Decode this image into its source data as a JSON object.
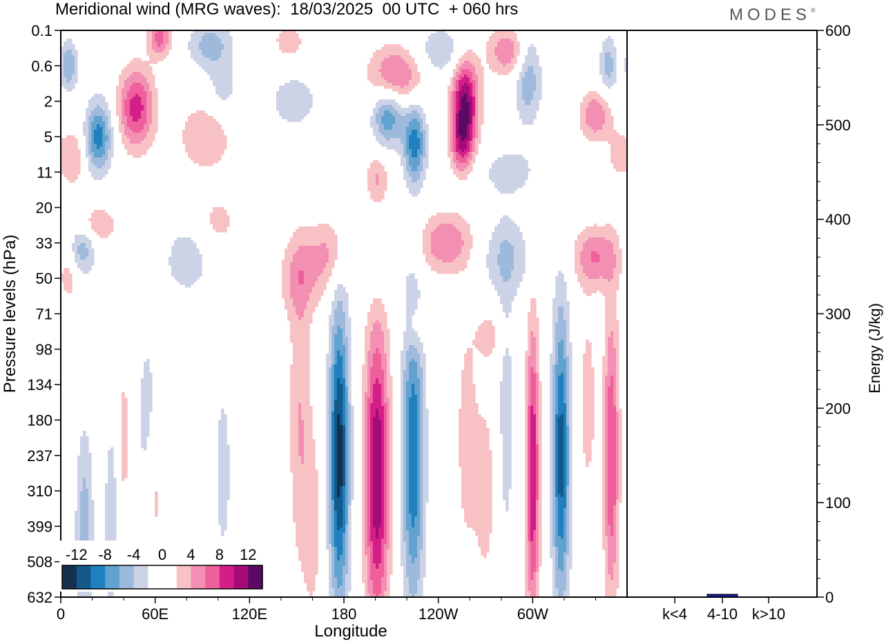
{
  "header": {
    "title": "Meridional wind (MRG waves):  18/03/2025  00 UTC  + 060 hrs",
    "logo": "MODES",
    "logo_mark": "®"
  },
  "colors": {
    "scale": [
      "#14304d",
      "#125a8a",
      "#1f7fbf",
      "#62a2cf",
      "#9db9dc",
      "#cdd3e7",
      "#ffffff",
      "#ffffff",
      "#f8c2c5",
      "#f48fb4",
      "#ee5f9c",
      "#d21e86",
      "#a50b77",
      "#5b0a63"
    ],
    "bar_fill": "#1a1a8c",
    "axis": "#000000"
  },
  "chart_data": [
    {
      "type": "heatmap",
      "title": "Meridional wind (MRG waves):  18/03/2025  00 UTC  + 060 hrs",
      "xlabel": "Longitude",
      "ylabel": "Pressure levels (hPa)",
      "x_ticks": [
        "0",
        "60E",
        "120E",
        "180",
        "120W",
        "60W"
      ],
      "x_tick_degrees": [
        0,
        60,
        120,
        180,
        240,
        300
      ],
      "xlim": [
        0,
        360
      ],
      "y_ticks": [
        "0.1",
        "0.6",
        "2",
        "5",
        "11",
        "20",
        "33",
        "50",
        "71",
        "98",
        "134",
        "180",
        "237",
        "310",
        "399",
        "508",
        "632"
      ],
      "colorbar": {
        "labels": [
          "-12",
          "-8",
          "-4",
          "0",
          "4",
          "8",
          "12"
        ],
        "levels": [
          -14,
          -12,
          -10,
          -8,
          -6,
          -4,
          -2,
          0,
          2,
          4,
          6,
          8,
          10,
          12,
          14
        ]
      },
      "features": [
        {
          "lon": 177,
          "level": 12.0,
          "value": -13,
          "lon_width": 4.5,
          "level_width": 3.0
        },
        {
          "lon": 201,
          "level": 12.5,
          "value": 12,
          "lon_width": 5.5,
          "level_width": 3.0
        },
        {
          "lon": 224,
          "level": 12.0,
          "value": -10,
          "lon_width": 5.0,
          "level_width": 3.0
        },
        {
          "lon": 300,
          "level": 12.5,
          "value": 10,
          "lon_width": 3.0,
          "level_width": 3.0
        },
        {
          "lon": 318,
          "level": 12.0,
          "value": -11,
          "lon_width": 4.0,
          "level_width": 3.0
        },
        {
          "lon": 350,
          "level": 12.0,
          "value": 8,
          "lon_width": 3.5,
          "level_width": 3.0
        },
        {
          "lon": 152,
          "level": 11.0,
          "value": 4,
          "lon_width": 5.0,
          "level_width": 3.0
        },
        {
          "lon": 160,
          "level": 14.0,
          "value": 3,
          "lon_width": 4.0,
          "level_width": 1.8
        },
        {
          "lon": 258,
          "level": 11.5,
          "value": 3,
          "lon_width": 5.0,
          "level_width": 2.5
        },
        {
          "lon": 270,
          "level": 13.0,
          "value": 3,
          "lon_width": 5.0,
          "level_width": 2.0
        },
        {
          "lon": 283,
          "level": 11.0,
          "value": -3,
          "lon_width": 4.0,
          "level_width": 3.0
        },
        {
          "lon": 335,
          "level": 10.5,
          "value": 3,
          "lon_width": 4.0,
          "level_width": 2.0
        },
        {
          "lon": 15,
          "level": 14.0,
          "value": -5,
          "lon_width": 4.0,
          "level_width": 2.0
        },
        {
          "lon": 32,
          "level": 14.0,
          "value": -4,
          "lon_width": 3.0,
          "level_width": 2.0
        },
        {
          "lon": 40,
          "level": 11.5,
          "value": 3,
          "lon_width": 3.0,
          "level_width": 1.5
        },
        {
          "lon": 55,
          "level": 11.0,
          "value": -3,
          "lon_width": 5.0,
          "level_width": 2.0
        },
        {
          "lon": 60,
          "level": 13.0,
          "value": 3,
          "lon_width": 4.0,
          "level_width": 1.5
        },
        {
          "lon": 103,
          "level": 12.5,
          "value": -3,
          "lon_width": 4.0,
          "level_width": 2.0
        },
        {
          "lon": 48,
          "level": 2.2,
          "value": 9,
          "lon_width": 8.0,
          "level_width": 0.8
        },
        {
          "lon": 24,
          "level": 3.0,
          "value": -9,
          "lon_width": 6.0,
          "level_width": 0.7
        },
        {
          "lon": 5,
          "level": 1.0,
          "value": -6,
          "lon_width": 4.0,
          "level_width": 0.5
        },
        {
          "lon": 63,
          "level": 0.2,
          "value": 7,
          "lon_width": 5.0,
          "level_width": 0.4
        },
        {
          "lon": 95,
          "level": 0.4,
          "value": -5,
          "lon_width": 10.0,
          "level_width": 0.5
        },
        {
          "lon": 103,
          "level": 1.7,
          "value": -3,
          "lon_width": 7.0,
          "level_width": 0.6
        },
        {
          "lon": 92,
          "level": 3.0,
          "value": 4,
          "lon_width": 12.0,
          "level_width": 0.7
        },
        {
          "lon": 145,
          "level": 0.3,
          "value": 3,
          "lon_width": 8.0,
          "level_width": 0.4
        },
        {
          "lon": 148,
          "level": 2.0,
          "value": -4,
          "lon_width": 10.0,
          "level_width": 0.5
        },
        {
          "lon": 213,
          "level": 1.3,
          "value": 7,
          "lon_width": 12.0,
          "level_width": 0.6
        },
        {
          "lon": 208,
          "level": 2.4,
          "value": -8,
          "lon_width": 7.0,
          "level_width": 0.6
        },
        {
          "lon": 225,
          "level": 3.2,
          "value": -9,
          "lon_width": 5.0,
          "level_width": 0.8
        },
        {
          "lon": 257,
          "level": 2.0,
          "value": 12,
          "lon_width": 6.0,
          "level_width": 0.9
        },
        {
          "lon": 255,
          "level": 3.2,
          "value": 7,
          "lon_width": 5.0,
          "level_width": 0.6
        },
        {
          "lon": 285,
          "level": 0.6,
          "value": 6,
          "lon_width": 10.0,
          "level_width": 0.5
        },
        {
          "lon": 297,
          "level": 1.2,
          "value": -6,
          "lon_width": 6.0,
          "level_width": 1.0
        },
        {
          "lon": 242,
          "level": 0.6,
          "value": -4,
          "lon_width": 12.0,
          "level_width": 0.5
        },
        {
          "lon": 348,
          "level": 1.0,
          "value": -5,
          "lon_width": 4.0,
          "level_width": 0.6
        },
        {
          "lon": 340,
          "level": 2.4,
          "value": 6,
          "lon_width": 7.0,
          "level_width": 0.5
        },
        {
          "lon": 355,
          "level": 3.5,
          "value": 3,
          "lon_width": 5.0,
          "level_width": 0.5
        },
        {
          "lon": 8,
          "level": 3.6,
          "value": 4,
          "lon_width": 5.0,
          "level_width": 0.6
        },
        {
          "lon": 100,
          "level": 5.4,
          "value": 3,
          "lon_width": 8.0,
          "level_width": 0.5
        },
        {
          "lon": 201,
          "level": 4.2,
          "value": 4,
          "lon_width": 5.0,
          "level_width": 0.5
        },
        {
          "lon": 285,
          "level": 4.0,
          "value": -3,
          "lon_width": 14.0,
          "level_width": 0.5
        },
        {
          "lon": 20,
          "level": 5.5,
          "value": 5,
          "lon_width": 10.0,
          "level_width": 0.4
        },
        {
          "lon": 14,
          "level": 6.0,
          "value": -6,
          "lon_width": 6.0,
          "level_width": 0.6
        },
        {
          "lon": 80,
          "level": 6.5,
          "value": -3,
          "lon_width": 12.0,
          "level_width": 0.8
        },
        {
          "lon": 152,
          "level": 7.0,
          "value": 4,
          "lon_width": 10.0,
          "level_width": 0.8
        },
        {
          "lon": 175,
          "level": 6.3,
          "value": 5,
          "lon_width": 12.0,
          "level_width": 0.7
        },
        {
          "lon": 195,
          "level": 6.5,
          "value": -4,
          "lon_width": 12.0,
          "level_width": 0.7
        },
        {
          "lon": 245,
          "level": 6.0,
          "value": 6,
          "lon_width": 12.0,
          "level_width": 0.6
        },
        {
          "lon": 283,
          "level": 6.4,
          "value": -4,
          "lon_width": 12.0,
          "level_width": 0.8
        },
        {
          "lon": 340,
          "level": 6.4,
          "value": 6,
          "lon_width": 10.0,
          "level_width": 0.6
        },
        {
          "lon": 5,
          "level": 7.0,
          "value": 3,
          "lon_width": 4.0,
          "level_width": 0.5
        },
        {
          "lon": 272,
          "level": 8.6,
          "value": 3,
          "lon_width": 6.0,
          "level_width": 0.5
        },
        {
          "lon": 225,
          "level": 8.4,
          "value": 3,
          "lon_width": 4.0,
          "level_width": 0.5
        }
      ]
    },
    {
      "type": "bar",
      "ylabel": "Energy (J/kg)",
      "categories": [
        "k<4",
        "4-10",
        "k>10"
      ],
      "values": [
        0,
        3,
        0
      ],
      "ylim": [
        0,
        600
      ],
      "y_ticks": [
        "0",
        "100",
        "200",
        "300",
        "400",
        "500",
        "600"
      ]
    }
  ]
}
